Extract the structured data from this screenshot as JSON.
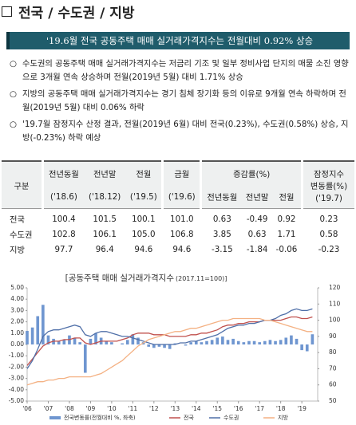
{
  "header": {
    "title": "전국 / 수도권 / 지방"
  },
  "summary": "'19.6월 전국 공동주택 매매 실거래가격지수는 전월대비 0.92% 상승",
  "bullets": [
    "수도권의 공동주택 매매 실거래가격지수는 저금리 기조 및 일부 정비사업 단지의 매물 소진 영향으로 3개월 연속 상승하며 전월(2019년 5월) 대비 1.71% 상승",
    "지방의 공동주택 매매 실거래가격지수는 경기 침체 장기화 등의 이유로 9개월 연속 하락하며 전월(2019년 5월) 대비 0.06% 하락",
    "'19.7월 잠정지수 산정 결과, 전월(2019년 6월) 대비 전국(0.23%), 수도권(0.58%) 상승, 지방(-0.23%) 하락 예상"
  ],
  "table": {
    "header": {
      "group": "구분",
      "cols": [
        "전년동월",
        "전년말",
        "전월",
        "금월"
      ],
      "periods": [
        "('18.6)",
        "('18.12)",
        "('19.5)",
        "('19.6)"
      ],
      "change": "증감률(%)",
      "change_cols": [
        "전년동월",
        "전년말",
        "전월"
      ],
      "provisional": "잠정지수 변동률(%)",
      "provisional_period": "('19.7)"
    },
    "rows": [
      [
        "전국",
        "100.4",
        "101.5",
        "100.1",
        "101.0",
        "0.63",
        "-0.49",
        "0.92",
        "0.23"
      ],
      [
        "수도권",
        "102.8",
        "106.1",
        "105.0",
        "106.8",
        "3.85",
        "0.63",
        "1.71",
        "0.58"
      ],
      [
        "지방",
        "97.7",
        "96.4",
        "94.6",
        "94.6",
        "-3.15",
        "-1.84",
        "-0.06",
        "-0.23"
      ]
    ]
  },
  "chart_data": {
    "type": "combo",
    "title": "[공동주택 매매 실거래가격지수",
    "title_note": "(2017.11=100)]",
    "x": [
      2006,
      2006.25,
      2006.5,
      2006.75,
      2007,
      2007.25,
      2007.5,
      2007.75,
      2008,
      2008.25,
      2008.5,
      2008.75,
      2009,
      2009.25,
      2009.5,
      2009.75,
      2010,
      2010.25,
      2010.5,
      2010.75,
      2011,
      2011.25,
      2011.5,
      2011.75,
      2012,
      2012.25,
      2012.5,
      2012.75,
      2013,
      2013.25,
      2013.5,
      2013.75,
      2014,
      2014.25,
      2014.5,
      2014.75,
      2015,
      2015.25,
      2015.5,
      2015.75,
      2016,
      2016.25,
      2016.5,
      2016.75,
      2017,
      2017.25,
      2017.5,
      2017.75,
      2018,
      2018.25,
      2018.5,
      2018.75,
      2019,
      2019.25,
      2019.5
    ],
    "xlim": [
      2006,
      2019.75
    ],
    "xticks": [
      {
        "value": 2006,
        "label": "'06"
      },
      {
        "value": 2007,
        "label": "'07"
      },
      {
        "value": 2008,
        "label": "'08"
      },
      {
        "value": 2009,
        "label": "'09"
      },
      {
        "value": 2010,
        "label": "'10"
      },
      {
        "value": 2011,
        "label": "'11"
      },
      {
        "value": 2012,
        "label": "'12"
      },
      {
        "value": 2013,
        "label": "'13"
      },
      {
        "value": 2014,
        "label": "'14"
      },
      {
        "value": 2015,
        "label": "'15"
      },
      {
        "value": 2016,
        "label": "'16"
      },
      {
        "value": 2017,
        "label": "'17"
      },
      {
        "value": 2018,
        "label": "'18"
      },
      {
        "value": 2019,
        "label": "'19"
      }
    ],
    "ylim": [
      -5,
      5
    ],
    "yticks": [
      {
        "value": 5,
        "label": "5.00"
      },
      {
        "value": 4,
        "label": "4.00"
      },
      {
        "value": 3,
        "label": "3.00"
      },
      {
        "value": 2,
        "label": "2.00"
      },
      {
        "value": 1,
        "label": "1.00"
      },
      {
        "value": 0,
        "label": "0.00"
      },
      {
        "value": -1,
        "label": "-1.00"
      },
      {
        "value": -2,
        "label": "-2.00"
      },
      {
        "value": -3,
        "label": "-3.00"
      },
      {
        "value": -4,
        "label": "-4.00"
      },
      {
        "value": -5,
        "label": "-5.00"
      }
    ],
    "y2lim": [
      50,
      120
    ],
    "y2ticks": [
      120,
      110,
      100,
      90,
      80,
      70,
      60,
      50
    ],
    "series": [
      {
        "name": "전국변동률(전월대비 %, 좌축)",
        "type": "bar",
        "color": "#6f96d0",
        "values": [
          1.2,
          1.5,
          2.5,
          3.5,
          0.8,
          0.5,
          0.3,
          0.4,
          0.8,
          0.6,
          0.2,
          -2.5,
          0.5,
          1.0,
          0.6,
          0.3,
          0.2,
          0.0,
          0.1,
          0.4,
          0.9,
          0.6,
          0.2,
          -0.2,
          -0.3,
          -0.2,
          -0.3,
          -0.4,
          0.1,
          0.0,
          -0.1,
          0.2,
          0.3,
          0.2,
          0.3,
          0.4,
          0.6,
          0.7,
          0.4,
          0.5,
          0.3,
          0.2,
          0.3,
          0.3,
          0.2,
          0.3,
          0.4,
          0.3,
          0.4,
          0.6,
          0.8,
          0.5,
          -0.5,
          -0.6,
          0.9
        ]
      },
      {
        "name": "전국",
        "type": "line",
        "axis": "y2",
        "color": "#c0504d",
        "values": [
          72,
          76,
          80,
          84,
          86,
          87,
          87,
          88,
          88,
          89,
          89,
          86,
          85,
          86,
          87,
          87,
          87,
          87,
          88,
          89,
          91,
          92,
          92,
          92,
          91,
          91,
          91,
          90,
          90,
          90,
          90,
          91,
          91,
          92,
          92,
          93,
          94,
          96,
          97,
          97,
          98,
          98,
          99,
          99,
          99,
          100,
          100,
          100,
          100,
          101,
          102,
          102,
          101,
          101,
          102
        ]
      },
      {
        "name": "수도권",
        "type": "line",
        "axis": "y2",
        "color": "#4f6fa8",
        "values": [
          70,
          75,
          82,
          90,
          93,
          94,
          94,
          95,
          96,
          97,
          96,
          91,
          90,
          92,
          93,
          93,
          92,
          91,
          90,
          90,
          89,
          88,
          87,
          86,
          85,
          85,
          85,
          85,
          85,
          86,
          86,
          87,
          87,
          88,
          89,
          90,
          91,
          93,
          95,
          96,
          97,
          97,
          98,
          98,
          99,
          100,
          100,
          101,
          103,
          104,
          106,
          107,
          106,
          106,
          107
        ]
      },
      {
        "name": "지방",
        "type": "line",
        "axis": "y2",
        "color": "#f4b183",
        "values": [
          60,
          61,
          62,
          62,
          63,
          63,
          64,
          64,
          65,
          65,
          65,
          65,
          65,
          66,
          67,
          69,
          71,
          73,
          75,
          78,
          81,
          84,
          86,
          88,
          89,
          90,
          91,
          92,
          93,
          93,
          94,
          95,
          95,
          96,
          97,
          98,
          99,
          100,
          100,
          101,
          101,
          101,
          101,
          101,
          101,
          100,
          100,
          99,
          98,
          97,
          96,
          95,
          94,
          93,
          93
        ]
      }
    ]
  }
}
